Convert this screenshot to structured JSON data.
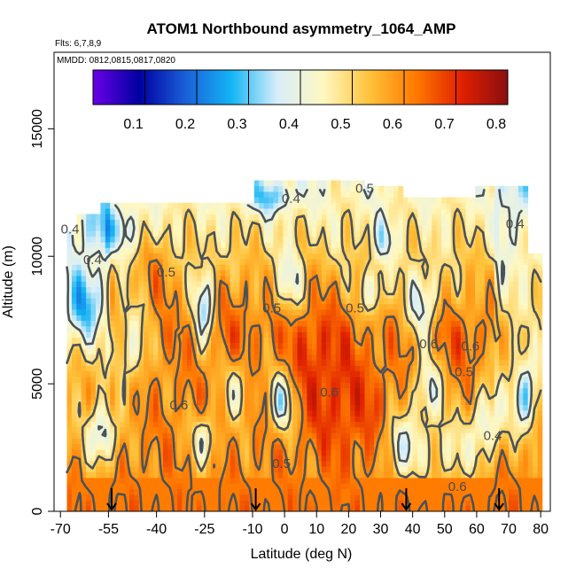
{
  "chart_data": {
    "type": "heatmap",
    "title": "ATOM1 Northbound asymmetry_1064_AMP",
    "flights_label": "Flts: 6,7,8,9",
    "dates_label": "MMDD: 0812,0815,0817,0820",
    "xlabel": "Latitude (deg N)",
    "ylabel": "Altitude (m)",
    "xlim": [
      -72,
      83
    ],
    "ylim": [
      0,
      18000
    ],
    "x_ticks": [
      -70,
      -55,
      -40,
      -25,
      -10,
      0,
      10,
      20,
      30,
      40,
      50,
      60,
      70,
      80
    ],
    "y_ticks": [
      0,
      5000,
      10000,
      15000
    ],
    "colorbar": {
      "range": [
        0,
        0.8
      ],
      "ticks": [
        "0.1",
        "0.2",
        "0.3",
        "0.4",
        "0.5",
        "0.6",
        "0.7",
        "0.8"
      ],
      "colors": [
        "#6a00e8",
        "#0000a0",
        "#1a5fd8",
        "#12b4f5",
        "#d8eefa",
        "#fff8c0",
        "#ffc23a",
        "#ff7a00",
        "#e02000",
        "#8a0e10"
      ]
    },
    "profile_latitudes": [
      -54,
      -9,
      38,
      67
    ],
    "contour_labels": [
      {
        "text": "0.5",
        "lat": 25,
        "alt": 12500
      },
      {
        "text": "0.4",
        "lat": 2,
        "alt": 12100
      },
      {
        "text": "0.4",
        "lat": -67,
        "alt": 10900
      },
      {
        "text": "0.4",
        "lat": 72,
        "alt": 11100
      },
      {
        "text": "0.4",
        "lat": -60,
        "alt": 9700
      },
      {
        "text": "0.5",
        "lat": -37,
        "alt": 9200
      },
      {
        "text": "0.5",
        "lat": -4,
        "alt": 7800
      },
      {
        "text": "0.5",
        "lat": 22,
        "alt": 7800
      },
      {
        "text": "0.6",
        "lat": 45,
        "alt": 6400
      },
      {
        "text": "0.6",
        "lat": 58,
        "alt": 6300
      },
      {
        "text": "0.5",
        "lat": 56,
        "alt": 5300
      },
      {
        "text": "0.6",
        "lat": 14,
        "alt": 4500
      },
      {
        "text": "0.6",
        "lat": -33,
        "alt": 4000
      },
      {
        "text": "0.4",
        "lat": 65,
        "alt": 2800
      },
      {
        "text": "0.5",
        "lat": -1,
        "alt": 1700
      },
      {
        "text": "0.6",
        "lat": 54,
        "alt": 800
      }
    ]
  }
}
